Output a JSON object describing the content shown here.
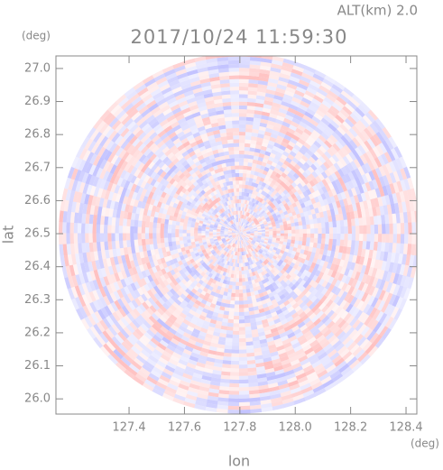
{
  "chart_data": {
    "type": "radar-ppi",
    "title": "2017/10/24 11:59:30",
    "subtitle": "ALT(km) 2.0",
    "x_label": "lon",
    "y_label": "lat",
    "x_unit": "(deg)",
    "y_unit": "(deg)",
    "xlim": [
      127.136,
      128.439
    ],
    "ylim": [
      25.954,
      27.038
    ],
    "xticks": [
      127.4,
      127.6,
      127.8,
      {
        "value": 128.0,
        "label": "128.0"
      },
      128.2,
      128.4
    ],
    "yticks": [
      {
        "value": 26.0,
        "label": "26.0"
      },
      26.1,
      26.2,
      26.3,
      26.4,
      26.5,
      26.6,
      26.7,
      26.8,
      26.9,
      {
        "value": 27.0,
        "label": "27.0"
      }
    ]
  }
}
